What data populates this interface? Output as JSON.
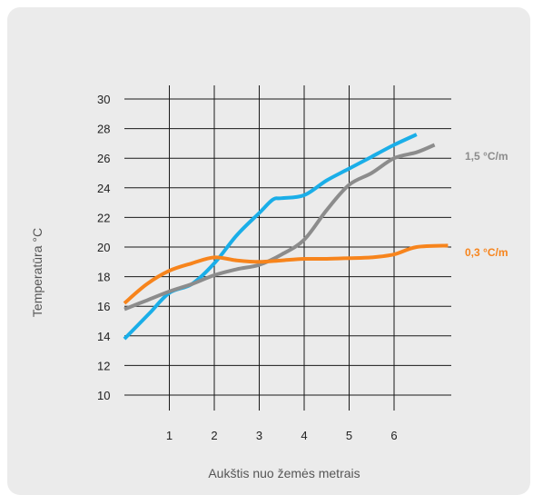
{
  "chart_data": {
    "type": "line",
    "xlabel": "Aukštis nuo žemės metrais",
    "ylabel": "Temperatūra °C",
    "x_ticks": [
      "1",
      "2",
      "3",
      "4",
      "5",
      "6"
    ],
    "y_ticks": [
      "10",
      "12",
      "14",
      "16",
      "18",
      "20",
      "22",
      "24",
      "26",
      "28",
      "30"
    ],
    "xlim": [
      0,
      7.2
    ],
    "ylim": [
      10,
      30
    ],
    "grid": true,
    "series": [
      {
        "color": "#1aaee8",
        "x": [
          0,
          0.55,
          1,
          1.5,
          2,
          2.5,
          3,
          3.3,
          3.5,
          4,
          4.5,
          5,
          5.5,
          6,
          6.5
        ],
        "y": [
          13.8,
          15.5,
          16.9,
          17.5,
          18.9,
          20.8,
          22.3,
          23.2,
          23.3,
          23.5,
          24.5,
          25.3,
          26.1,
          26.9,
          27.6
        ]
      },
      {
        "color": "#8c8c8c",
        "x": [
          0,
          0.5,
          1,
          1.5,
          2,
          2.5,
          3,
          3.5,
          4,
          4.5,
          5,
          5.5,
          6,
          6.5,
          6.9
        ],
        "y": [
          15.8,
          16.4,
          17.0,
          17.5,
          18.1,
          18.5,
          18.8,
          19.5,
          20.5,
          22.5,
          24.2,
          25.0,
          26.0,
          26.4,
          26.9
        ]
      },
      {
        "name": "0,3 °C/m",
        "color": "#f7841c",
        "x": [
          0,
          0.5,
          1,
          1.5,
          2,
          2.5,
          3,
          3.5,
          4,
          4.5,
          5,
          5.5,
          6,
          6.5,
          7.2
        ],
        "y": [
          16.2,
          17.5,
          18.4,
          18.9,
          19.3,
          19.1,
          19.0,
          19.1,
          19.2,
          19.2,
          19.25,
          19.3,
          19.5,
          20.0,
          20.1
        ]
      }
    ],
    "annotations": [
      {
        "text": "1,5 °C/m",
        "color": "#8c8c8c"
      },
      {
        "text": "0,3 °C/m",
        "color": "#f7841c"
      }
    ]
  }
}
